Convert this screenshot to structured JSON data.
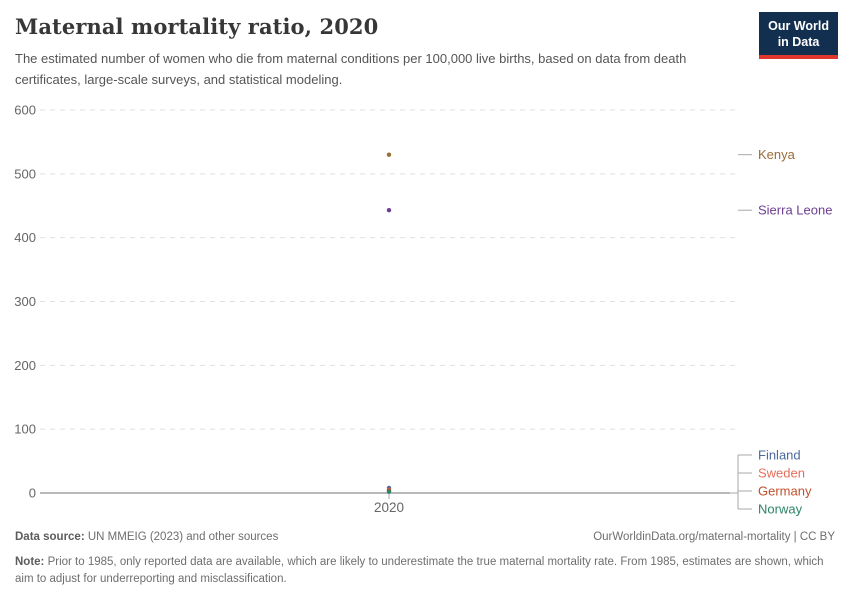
{
  "header": {
    "title": "Maternal mortality ratio, 2020",
    "subtitle": "The estimated number of women who die from maternal conditions per 100,000 live births, based on data from death certificates, large-scale surveys, and statistical modeling.",
    "logo": {
      "line1": "Our World",
      "line2": "in Data"
    }
  },
  "footer": {
    "source_label": "Data source:",
    "source_text": " UN MMEIG (2023) and other sources",
    "rights": "OurWorldinData.org/maternal-mortality | CC BY",
    "note_label": "Note:",
    "note_text": " Prior to 1985, only reported data are available, which are likely to underestimate the true maternal mortality rate. From 1985, estimates are shown, which aim to adjust for underreporting and misclassification."
  },
  "chart_data": {
    "type": "scatter",
    "title": "Maternal mortality ratio, 2020",
    "xlabel": "",
    "ylabel": "",
    "x_tick_label": "2020",
    "ylim": [
      0,
      600
    ],
    "yticks": [
      0,
      100,
      200,
      300,
      400,
      500,
      600
    ],
    "grid": "dashed-horizontal",
    "legend_position": "right-entity-labels",
    "series": [
      {
        "name": "Kenya",
        "x": 2020,
        "value": 530,
        "color": "#996D39",
        "label_group": "high"
      },
      {
        "name": "Sierra Leone",
        "x": 2020,
        "value": 443,
        "color": "#6D3E91",
        "label_group": "high"
      },
      {
        "name": "Finland",
        "x": 2020,
        "value": 8,
        "color": "#4C6A9C",
        "label_group": "low"
      },
      {
        "name": "Sweden",
        "x": 2020,
        "value": 5,
        "color": "#E56E5A",
        "label_group": "low"
      },
      {
        "name": "Germany",
        "x": 2020,
        "value": 4,
        "color": "#C0502D",
        "label_group": "low"
      },
      {
        "name": "Norway",
        "x": 2020,
        "value": 2,
        "color": "#2C8465",
        "label_group": "low"
      }
    ],
    "style_colors": {
      "gridline": "#e0e0e0",
      "axis_line": "#8f8f8f",
      "tick_text": "#666666",
      "connector": "#a8a8a8"
    }
  }
}
